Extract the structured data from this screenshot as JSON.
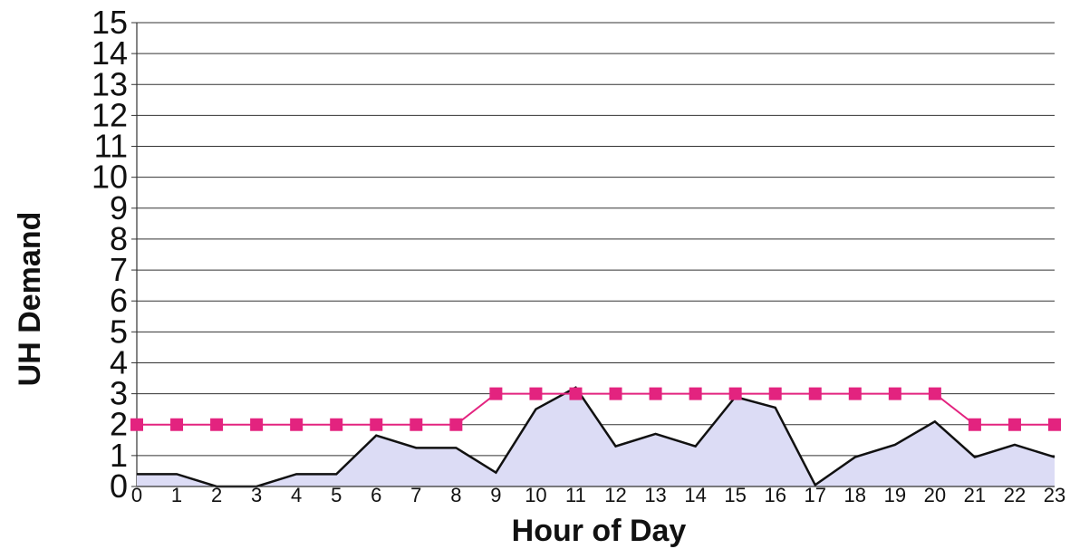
{
  "chart_data": {
    "type": "line",
    "title": "",
    "xlabel": "Hour of Day",
    "ylabel": "UH Demand",
    "x": [
      0,
      1,
      2,
      3,
      4,
      5,
      6,
      7,
      8,
      9,
      10,
      11,
      12,
      13,
      14,
      15,
      16,
      17,
      18,
      19,
      20,
      21,
      22,
      23
    ],
    "x_tick_labels": [
      "0",
      "1",
      "2",
      "3",
      "4",
      "5",
      "6",
      "7",
      "8",
      "9",
      "10",
      "11",
      "12",
      "13",
      "14",
      "15",
      "16",
      "17",
      "18",
      "19",
      "20",
      "21",
      "22",
      "23"
    ],
    "y_tick_labels": [
      "0",
      "1",
      "2",
      "3",
      "4",
      "5",
      "6",
      "7",
      "8",
      "9",
      "10",
      "11",
      "12",
      "13",
      "14",
      "15"
    ],
    "ylim": [
      0,
      15
    ],
    "grid": true,
    "series": [
      {
        "style": "area",
        "values": [
          0.4,
          0.4,
          0,
          0,
          0.4,
          0.4,
          1.65,
          1.25,
          1.25,
          0.45,
          2.5,
          3.2,
          1.3,
          1.7,
          1.3,
          2.9,
          2.55,
          0.05,
          0.95,
          1.35,
          2.1,
          0.95,
          1.35,
          0.95
        ],
        "fill": "#dcdcf5",
        "stroke": "#111111"
      },
      {
        "style": "line-square-markers",
        "values": [
          2,
          2,
          2,
          2,
          2,
          2,
          2,
          2,
          2,
          3,
          3,
          3,
          3,
          3,
          3,
          3,
          3,
          3,
          3,
          3,
          3,
          2,
          2,
          2
        ],
        "color": "#e3237f"
      }
    ]
  }
}
